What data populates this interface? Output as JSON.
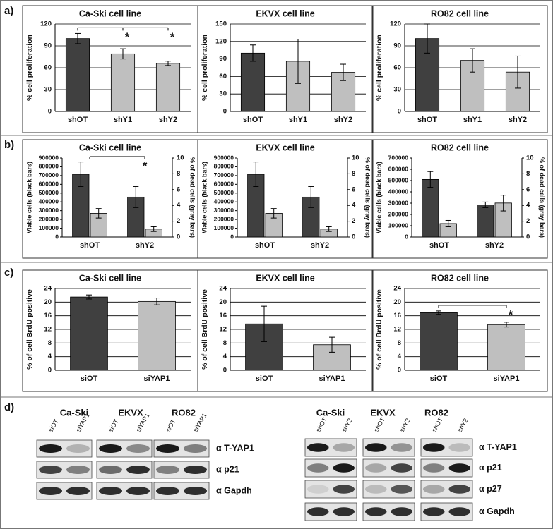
{
  "panel_labels": [
    "a)",
    "b)",
    "c)",
    "d)"
  ],
  "chart_data": [
    {
      "type": "bar",
      "title": "Ca-Ski cell line",
      "ylabel": "% cell proliferation",
      "categories": [
        "shOT",
        "shY1",
        "shY2"
      ],
      "values": [
        100,
        79,
        66
      ],
      "errors": [
        7,
        7,
        3
      ],
      "colors": [
        "#404040",
        "#bfbfbf",
        "#bfbfbf"
      ],
      "ylim": [
        0,
        120
      ],
      "yticks": [
        0,
        30,
        60,
        90,
        120
      ],
      "grid": true,
      "annotations": [
        "*",
        "*"
      ]
    },
    {
      "type": "bar",
      "title": "EKVX cell line",
      "ylabel": "% cell proliferation",
      "categories": [
        "shOT",
        "shY1",
        "shY2"
      ],
      "values": [
        100,
        86,
        67
      ],
      "errors": [
        14,
        38,
        14
      ],
      "colors": [
        "#404040",
        "#bfbfbf",
        "#bfbfbf"
      ],
      "ylim": [
        0,
        150
      ],
      "yticks": [
        0,
        30,
        60,
        90,
        120,
        150
      ],
      "grid": true
    },
    {
      "type": "bar",
      "title": "RO82 cell line",
      "ylabel": "% cell proliferation",
      "categories": [
        "shOT",
        "shY1",
        "shY2"
      ],
      "values": [
        100,
        70,
        54
      ],
      "errors": [
        20,
        16,
        22
      ],
      "colors": [
        "#404040",
        "#bfbfbf",
        "#bfbfbf"
      ],
      "ylim": [
        0,
        120
      ],
      "yticks": [
        0,
        30,
        60,
        90,
        120
      ],
      "grid": true
    },
    {
      "type": "bar",
      "title": "Ca-Ski cell line",
      "ylabel": "Viable cells (black bars)",
      "y2label": "% of dead cells  (gray bars)",
      "categories": [
        "shOT",
        "shY2"
      ],
      "series": [
        {
          "color": "#404040",
          "values": [
            715000,
            455000
          ],
          "errors": [
            140000,
            120000
          ]
        },
        {
          "color": "#bfbfbf",
          "values": [
            3.0,
            1.0
          ],
          "errors": [
            0.6,
            0.3
          ],
          "axis": "y2"
        }
      ],
      "ylim": [
        0,
        900000
      ],
      "yticks": [
        0,
        100000,
        200000,
        300000,
        400000,
        500000,
        600000,
        700000,
        800000,
        900000
      ],
      "y2lim": [
        0,
        10
      ],
      "y2ticks": [
        0,
        2,
        4,
        6,
        8,
        10
      ],
      "grid": false,
      "annotations": [
        "*"
      ]
    },
    {
      "type": "bar",
      "title": "EKVX cell line",
      "ylabel": "Viable cells (black bars)",
      "y2label": "% of dead cells  (gray bars)",
      "categories": [
        "shOT",
        "shY2"
      ],
      "series": [
        {
          "color": "#404040",
          "values": [
            715000,
            455000
          ],
          "errors": [
            140000,
            120000
          ]
        },
        {
          "color": "#bfbfbf",
          "values": [
            3.0,
            1.0
          ],
          "errors": [
            0.6,
            0.3
          ],
          "axis": "y2"
        }
      ],
      "ylim": [
        0,
        900000
      ],
      "yticks": [
        0,
        100000,
        200000,
        300000,
        400000,
        500000,
        600000,
        700000,
        800000,
        900000
      ],
      "y2lim": [
        0,
        10
      ],
      "y2ticks": [
        0,
        2,
        4,
        6,
        8,
        10
      ],
      "grid": false
    },
    {
      "type": "bar",
      "title": "RO82 cell line",
      "ylabel": "Viable cells (black bars)",
      "y2label": "% of dead cells  (gray bars)",
      "categories": [
        "shOT",
        "shY2"
      ],
      "series": [
        {
          "color": "#404040",
          "values": [
            510000,
            285000
          ],
          "errors": [
            70000,
            25000
          ]
        },
        {
          "color": "#bfbfbf",
          "values": [
            1.7,
            4.3
          ],
          "errors": [
            0.4,
            1.0
          ],
          "axis": "y2"
        }
      ],
      "ylim": [
        0,
        700000
      ],
      "yticks": [
        0,
        100000,
        200000,
        300000,
        400000,
        500000,
        600000,
        700000
      ],
      "y2lim": [
        0,
        10
      ],
      "y2ticks": [
        0,
        2,
        4,
        6,
        8,
        10
      ],
      "grid": false
    },
    {
      "type": "bar",
      "title": "Ca-Ski cell line",
      "ylabel": "% of cell BrdU positive",
      "categories": [
        "siOT",
        "siYAP1"
      ],
      "values": [
        21.5,
        20.2
      ],
      "errors": [
        0.6,
        1.0
      ],
      "colors": [
        "#404040",
        "#bfbfbf"
      ],
      "ylim": [
        0,
        24
      ],
      "yticks": [
        0,
        4,
        8,
        12,
        16,
        20,
        24
      ],
      "grid": true
    },
    {
      "type": "bar",
      "title": "EKVX cell line",
      "ylabel": "% of cell BrdU positive",
      "categories": [
        "siOT",
        "siYAP1"
      ],
      "values": [
        13.6,
        7.5
      ],
      "errors": [
        5.2,
        2.2
      ],
      "colors": [
        "#404040",
        "#bfbfbf"
      ],
      "ylim": [
        0,
        24
      ],
      "yticks": [
        0,
        4,
        8,
        12,
        16,
        20,
        24
      ],
      "grid": true
    },
    {
      "type": "bar",
      "title": "RO82 cell line",
      "ylabel": "% of cell BrdU positive",
      "categories": [
        "siOT",
        "siYAP1"
      ],
      "values": [
        16.9,
        13.4
      ],
      "errors": [
        0.5,
        0.7
      ],
      "colors": [
        "#404040",
        "#bfbfbf"
      ],
      "ylim": [
        0,
        24
      ],
      "yticks": [
        0,
        4,
        8,
        12,
        16,
        20,
        24
      ],
      "grid": true,
      "annotations": [
        "*"
      ]
    }
  ],
  "blots": [
    {
      "cell_lines": [
        "Ca-Ski",
        "EKVX",
        "RO82"
      ],
      "lanes": [
        "siOT",
        "siYAP1"
      ],
      "antibodies": [
        "α T-YAP1",
        "α p21",
        "α Gapdh"
      ]
    },
    {
      "cell_lines": [
        "Ca-Ski",
        "EKVX",
        "RO82"
      ],
      "lanes": [
        "shOT",
        "shY2"
      ],
      "antibodies": [
        "α T-YAP1",
        "α p21",
        "α p27",
        "α Gapdh"
      ]
    }
  ]
}
